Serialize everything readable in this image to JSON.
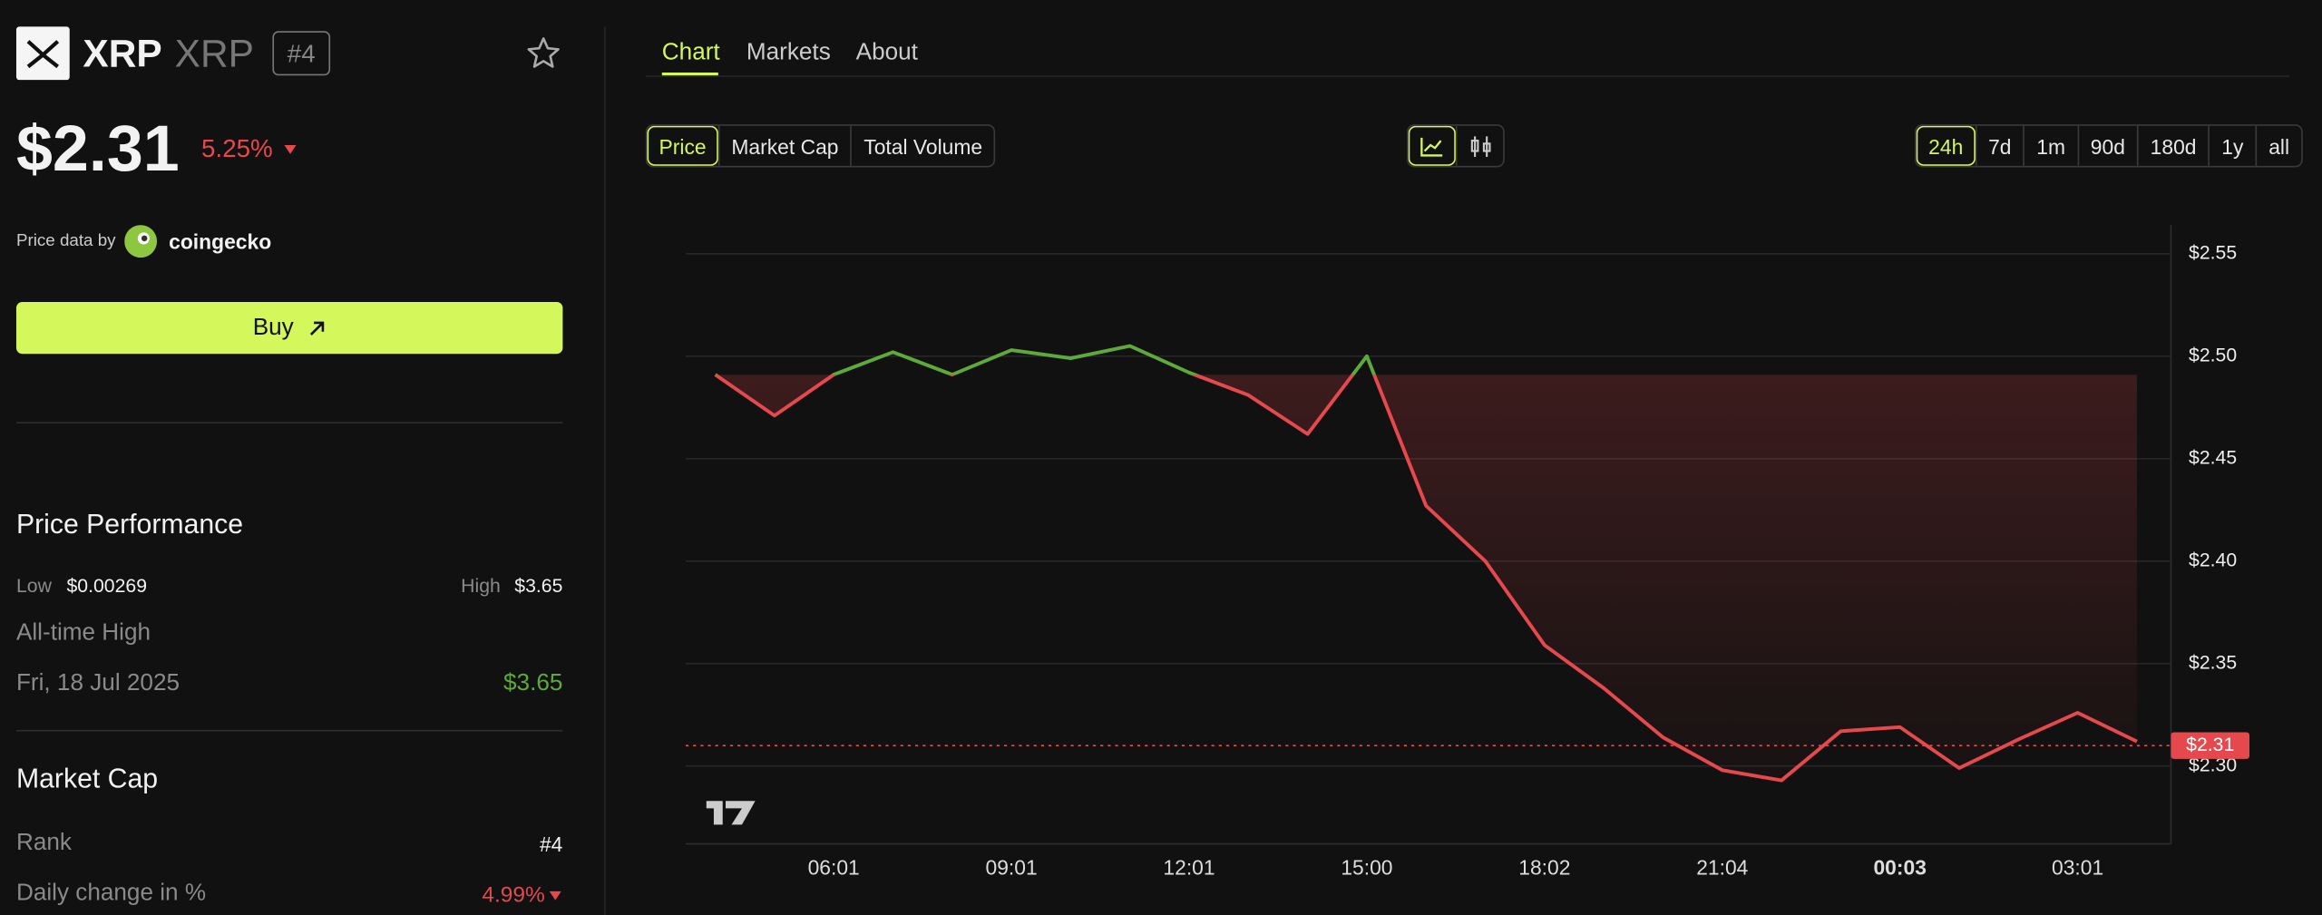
{
  "asset": {
    "name": "XRP",
    "symbol": "XRP",
    "rank": "#4",
    "price": "$2.31",
    "change_24h": "5.25%",
    "source_label": "Price data by",
    "source": "coingecko",
    "buy": "Buy"
  },
  "performance": {
    "title": "Price Performance",
    "low_label": "Low",
    "low": "$0.00269",
    "high_label": "High",
    "high": "$3.65",
    "ath_label": "All-time High",
    "ath_date": "Fri, 18 Jul 2025",
    "ath_value": "$3.65"
  },
  "market_cap": {
    "title": "Market Cap",
    "rank_label": "Rank",
    "rank": "#4",
    "daily_change_label": "Daily change in %",
    "daily_change": "4.99%"
  },
  "tabs": [
    "Chart",
    "Markets",
    "About"
  ],
  "active_tab": 0,
  "metrics": [
    "Price",
    "Market Cap",
    "Total Volume"
  ],
  "active_metric": 0,
  "ranges": [
    "24h",
    "7d",
    "1m",
    "90d",
    "180d",
    "1y",
    "all"
  ],
  "active_range": 0,
  "chart_data": {
    "type": "line",
    "categories": [
      null,
      null,
      "06:01",
      null,
      null,
      "09:01",
      null,
      null,
      "12:01",
      null,
      null,
      "15:00",
      null,
      null,
      "18:02",
      null,
      null,
      "21:04",
      null,
      null,
      "00:03",
      null,
      null,
      "03:01",
      null
    ],
    "highlight_category": 20,
    "values": [
      2.491,
      2.471,
      2.491,
      2.502,
      2.491,
      2.503,
      2.499,
      2.505,
      2.492,
      2.481,
      2.462,
      2.5,
      2.427,
      2.4,
      2.359,
      2.338,
      2.314,
      2.298,
      2.293,
      2.317,
      2.319,
      2.299,
      2.313,
      2.326,
      2.312
    ],
    "up_color": "#5fa83a",
    "down_color": "#e5484d",
    "current_price": 2.31,
    "current_price_label": "$2.31",
    "ylim": [
      2.262,
      2.564
    ],
    "yticks": [
      {
        "value": 2.3,
        "label": "$2.30"
      },
      {
        "value": 2.35,
        "label": "$2.35"
      },
      {
        "value": 2.4,
        "label": "$2.40"
      },
      {
        "value": 2.45,
        "label": "$2.45"
      },
      {
        "value": 2.5,
        "label": "$2.50"
      },
      {
        "value": 2.55,
        "label": "$2.55"
      }
    ],
    "grid": true
  }
}
